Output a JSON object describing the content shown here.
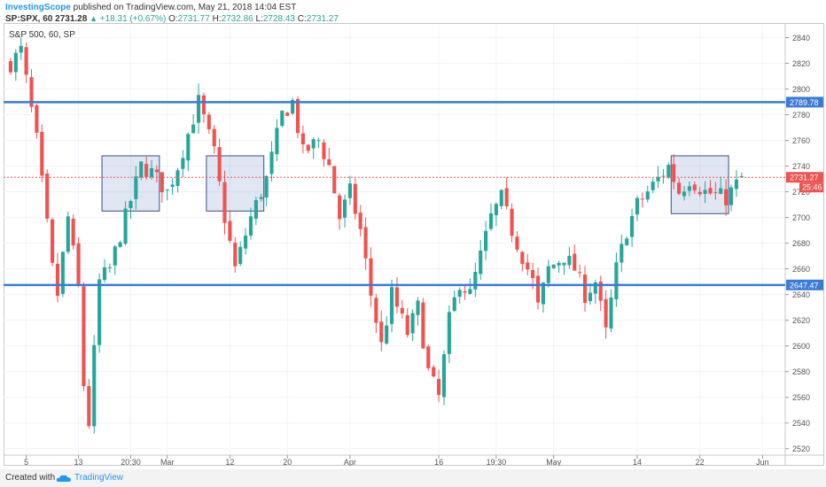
{
  "header": {
    "author": "InvestingScope",
    "published": " published on TradingView.com, May 21, 2018 14:04 EST",
    "symbol": "SP:SPX, 60",
    "last": "2731.28",
    "change": "+18.31 (+0.67%)",
    "o_label": "O:",
    "o_val": "2731.77",
    "h_label": "H:",
    "h_val": "2732.86",
    "l_label": "L:",
    "l_val": "2728.43",
    "c_label": "C:",
    "c_val": "2731.27",
    "up_color": "#26a69a"
  },
  "footer": {
    "created": "Created with",
    "brand": "TradingView",
    "logo_icon": "tradingview-cloud-icon"
  },
  "chart_data": {
    "type": "candlestick",
    "legend": "S&P 500, 60, SP",
    "ylim": [
      2515,
      2850
    ],
    "y_ticks": [
      2520,
      2540,
      2560,
      2580,
      2600,
      2620,
      2640,
      2660,
      2680,
      2700,
      2720,
      2740,
      2760,
      2780,
      2800,
      2820,
      2840
    ],
    "x_ticks": [
      "5",
      "13",
      "20:30",
      "Mar",
      "12",
      "20",
      "Apr",
      "16",
      "19:30",
      "May",
      "14",
      "22",
      "Jun"
    ],
    "x_tick_index": [
      3,
      13,
      23,
      30,
      42,
      53,
      65,
      82,
      93,
      104,
      120,
      132,
      144
    ],
    "n_bars": 148,
    "price_path": [
      [
        0,
        2820
      ],
      [
        2,
        2830
      ],
      [
        5,
        2760
      ],
      [
        8,
        2660
      ],
      [
        9,
        2640
      ],
      [
        11,
        2700
      ],
      [
        13,
        2645
      ],
      [
        14,
        2570
      ],
      [
        15,
        2540
      ],
      [
        17,
        2650
      ],
      [
        19,
        2660
      ],
      [
        22,
        2700
      ],
      [
        25,
        2740
      ],
      [
        27,
        2735
      ],
      [
        30,
        2720
      ],
      [
        32,
        2740
      ],
      [
        36,
        2790
      ],
      [
        39,
        2750
      ],
      [
        41,
        2700
      ],
      [
        43,
        2660
      ],
      [
        46,
        2700
      ],
      [
        49,
        2730
      ],
      [
        52,
        2780
      ],
      [
        54,
        2790
      ],
      [
        56,
        2750
      ],
      [
        59,
        2760
      ],
      [
        61,
        2740
      ],
      [
        63,
        2700
      ],
      [
        65,
        2720
      ],
      [
        67,
        2690
      ],
      [
        69,
        2640
      ],
      [
        71,
        2600
      ],
      [
        73,
        2640
      ],
      [
        76,
        2610
      ],
      [
        78,
        2630
      ],
      [
        80,
        2580
      ],
      [
        82,
        2560
      ],
      [
        84,
        2620
      ],
      [
        86,
        2650
      ],
      [
        88,
        2640
      ],
      [
        90,
        2670
      ],
      [
        92,
        2700
      ],
      [
        94,
        2715
      ],
      [
        96,
        2690
      ],
      [
        98,
        2670
      ],
      [
        100,
        2650
      ],
      [
        101,
        2630
      ],
      [
        103,
        2660
      ],
      [
        106,
        2670
      ],
      [
        108,
        2660
      ],
      [
        110,
        2640
      ],
      [
        112,
        2650
      ],
      [
        114,
        2610
      ],
      [
        116,
        2660
      ],
      [
        118,
        2690
      ],
      [
        120,
        2710
      ],
      [
        122,
        2720
      ],
      [
        124,
        2730
      ],
      [
        126,
        2740
      ],
      [
        128,
        2720
      ],
      [
        130,
        2730
      ],
      [
        133,
        2720
      ],
      [
        137,
        2715
      ],
      [
        140,
        2731
      ]
    ],
    "horizontal_lines": [
      {
        "price": 2789.78,
        "label": "2789.78",
        "color": "#3b7bd6"
      },
      {
        "price": 2647.47,
        "label": "2647.47",
        "color": "#3b7bd6"
      }
    ],
    "current_price": {
      "price": 2731.27,
      "label": "2731.27",
      "countdown": "25:46",
      "color": "#ef5350"
    },
    "boxes": [
      {
        "x0": 18,
        "x1": 28,
        "y0": 2705,
        "y1": 2748
      },
      {
        "x0": 38,
        "x1": 48,
        "y0": 2705,
        "y1": 2748
      },
      {
        "x0": 127,
        "x1": 137,
        "y0": 2703,
        "y1": 2748
      }
    ],
    "up_color": "#26a69a",
    "down_color": "#ef5350"
  }
}
